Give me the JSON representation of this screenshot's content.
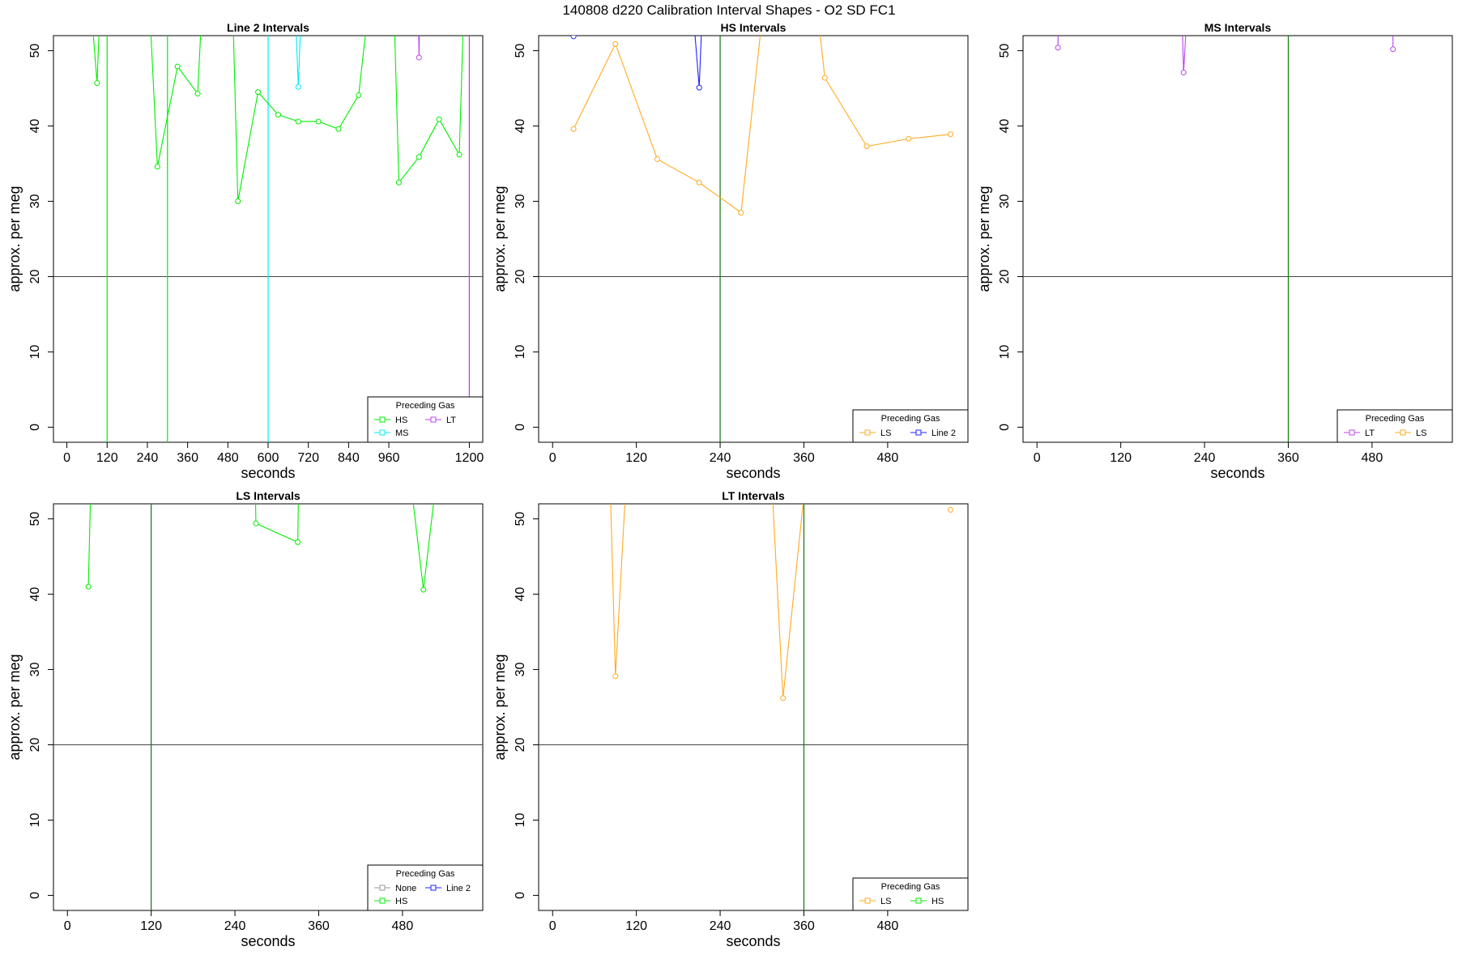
{
  "figure_title": "140808   d220   Calibration Interval Shapes - O2 SD FC1",
  "colors": {
    "green": "#00ee00",
    "cyan": "#00eeee",
    "purple": "#bb44ee",
    "orange": "#ffaa22",
    "blue": "#2222ff",
    "gray": "#999999",
    "darkgreen": "#117711",
    "refline": "#444444"
  },
  "chart_data": [
    {
      "type": "line",
      "title": "Line 2 Intervals",
      "xlabel": "seconds",
      "ylabel": "approx. per meg",
      "xlim": [
        -40,
        1240
      ],
      "ylim": [
        -2,
        52
      ],
      "xticks": [
        0,
        120,
        240,
        360,
        480,
        600,
        720,
        840,
        960,
        1200
      ],
      "yticks": [
        0,
        10,
        20,
        30,
        40,
        50
      ],
      "hline": 20,
      "vlines": [
        {
          "x": 120,
          "color": "green"
        },
        {
          "x": 300,
          "color": "green"
        },
        {
          "x": 600,
          "color": "cyan"
        },
        {
          "x": 1200,
          "color": "purple"
        }
      ],
      "series": [
        {
          "name": "HS",
          "color": "green",
          "segments": [
            [
              [
                30,
                80
              ],
              [
                90,
                45.7
              ],
              [
                120,
                80
              ]
            ],
            [
              [
                220,
                80
              ],
              [
                270,
                34.6
              ],
              [
                330,
                47.9
              ],
              [
                390,
                44.3
              ],
              [
                430,
                80
              ]
            ],
            [
              [
                480,
                80
              ],
              [
                510,
                30
              ],
              [
                570,
                44.5
              ],
              [
                630,
                41.5
              ],
              [
                690,
                40.6
              ],
              [
                750,
                40.6
              ],
              [
                810,
                39.6
              ],
              [
                870,
                44.1
              ],
              [
                960,
                80
              ]
            ],
            [
              [
                960,
                80
              ],
              [
                990,
                32.5
              ],
              [
                1050,
                35.9
              ],
              [
                1110,
                40.9
              ],
              [
                1170,
                36.2
              ],
              [
                1200,
                80
              ]
            ]
          ]
        },
        {
          "name": "MS",
          "color": "cyan",
          "segments": [
            [
              [
                660,
                80
              ],
              [
                690,
                45.2
              ],
              [
                720,
                80
              ]
            ]
          ]
        },
        {
          "name": "LT",
          "color": "purple",
          "segments": [
            [
              [
                1040,
                80
              ],
              [
                1050,
                49.1
              ],
              [
                1060,
                80
              ]
            ],
            [
              [
                1200,
                80
              ],
              [
                1200,
                -2
              ]
            ]
          ]
        }
      ],
      "legend": {
        "title": "Preceding Gas",
        "position": "bottom-right",
        "columns": 2,
        "entries": [
          "HS",
          "LT",
          "MS"
        ]
      }
    },
    {
      "type": "line",
      "title": "HS Intervals",
      "xlabel": "seconds",
      "ylabel": "approx. per meg",
      "xlim": [
        -20,
        595
      ],
      "ylim": [
        -2,
        52
      ],
      "xticks": [
        0,
        120,
        240,
        360,
        480
      ],
      "yticks": [
        0,
        10,
        20,
        30,
        40,
        50
      ],
      "hline": 20,
      "vlines": [
        {
          "x": 240,
          "color": "darkgreen"
        }
      ],
      "series": [
        {
          "name": "LS",
          "color": "orange",
          "segments": [
            [
              [
                30,
                39.6
              ],
              [
                90,
                50.9
              ],
              [
                150,
                35.6
              ],
              [
                210,
                32.5
              ],
              [
                270,
                28.5
              ],
              [
                330,
                80
              ]
            ],
            [
              [
                350,
                80
              ],
              [
                390,
                46.4
              ],
              [
                450,
                37.3
              ],
              [
                510,
                38.3
              ],
              [
                570,
                38.9
              ]
            ]
          ]
        },
        {
          "name": "Line 2",
          "color": "blue",
          "segments": [
            [
              [
                30,
                51.9
              ],
              [
                40,
                80
              ]
            ],
            [
              [
                180,
                80
              ],
              [
                210,
                45.1
              ],
              [
                225,
                80
              ]
            ]
          ]
        }
      ],
      "legend": {
        "title": "Preceding Gas",
        "position": "bottom-right",
        "columns": 2,
        "entries": [
          "LS",
          "Line 2"
        ]
      }
    },
    {
      "type": "line",
      "title": "MS Intervals",
      "xlabel": "seconds",
      "ylabel": "approx. per meg",
      "xlim": [
        -20,
        595
      ],
      "ylim": [
        -2,
        52
      ],
      "xticks": [
        0,
        120,
        240,
        360,
        480
      ],
      "yticks": [
        0,
        10,
        20,
        30,
        40,
        50
      ],
      "hline": 20,
      "vlines": [
        {
          "x": 360,
          "color": "darkgreen"
        }
      ],
      "series": [
        {
          "name": "LT",
          "color": "purple",
          "segments": [
            [
              [
                30,
                50.4
              ],
              [
                35,
                80
              ]
            ],
            [
              [
                200,
                80
              ],
              [
                210,
                47.1
              ],
              [
                230,
                80
              ]
            ],
            [
              [
                510,
                80
              ],
              [
                510,
                50.2
              ]
            ]
          ]
        },
        {
          "name": "LS",
          "color": "orange",
          "segments": []
        }
      ],
      "legend": {
        "title": "Preceding Gas",
        "position": "bottom-right",
        "columns": 2,
        "entries": [
          "LT",
          "LS"
        ]
      }
    },
    {
      "type": "line",
      "title": "LS Intervals",
      "xlabel": "seconds",
      "ylabel": "approx. per meg",
      "xlim": [
        -20,
        595
      ],
      "ylim": [
        -2,
        52
      ],
      "xticks": [
        0,
        120,
        240,
        360,
        480
      ],
      "yticks": [
        0,
        10,
        20,
        30,
        40,
        50
      ],
      "hline": 20,
      "vlines": [
        {
          "x": 120,
          "color": "darkgreen"
        }
      ],
      "series": [
        {
          "name": "None",
          "color": "gray",
          "segments": []
        },
        {
          "name": "Line 2",
          "color": "blue",
          "segments": []
        },
        {
          "name": "HS",
          "color": "green",
          "segments": [
            [
              [
                30,
                41
              ],
              [
                40,
                80
              ]
            ],
            [
              [
                265,
                80
              ],
              [
                270,
                49.4
              ],
              [
                330,
                46.9
              ],
              [
                335,
                80
              ]
            ],
            [
              [
                460,
                80
              ],
              [
                510,
                40.6
              ],
              [
                560,
                80
              ]
            ]
          ]
        }
      ],
      "legend": {
        "title": "Preceding Gas",
        "position": "bottom-right",
        "columns": 2,
        "entries": [
          "None",
          "Line 2",
          "HS"
        ]
      }
    },
    {
      "type": "line",
      "title": "LT Intervals",
      "xlabel": "seconds",
      "ylabel": "approx. per meg",
      "xlim": [
        -20,
        595
      ],
      "ylim": [
        -2,
        52
      ],
      "xticks": [
        0,
        120,
        240,
        360,
        480
      ],
      "yticks": [
        0,
        10,
        20,
        30,
        40,
        50
      ],
      "hline": 20,
      "vlines": [
        {
          "x": 360,
          "color": "darkgreen"
        }
      ],
      "series": [
        {
          "name": "LS",
          "color": "orange",
          "segments": [
            [
              [
                75,
                80
              ],
              [
                90,
                29.1
              ],
              [
                120,
                80
              ]
            ],
            [
              [
                300,
                80
              ],
              [
                330,
                26.2
              ],
              [
                390,
                80
              ]
            ],
            [
              [
                570,
                51.2
              ]
            ]
          ]
        },
        {
          "name": "HS",
          "color": "green",
          "segments": []
        }
      ],
      "legend": {
        "title": "Preceding Gas",
        "position": "bottom-right",
        "columns": 2,
        "entries": [
          "LS",
          "HS"
        ]
      }
    }
  ]
}
